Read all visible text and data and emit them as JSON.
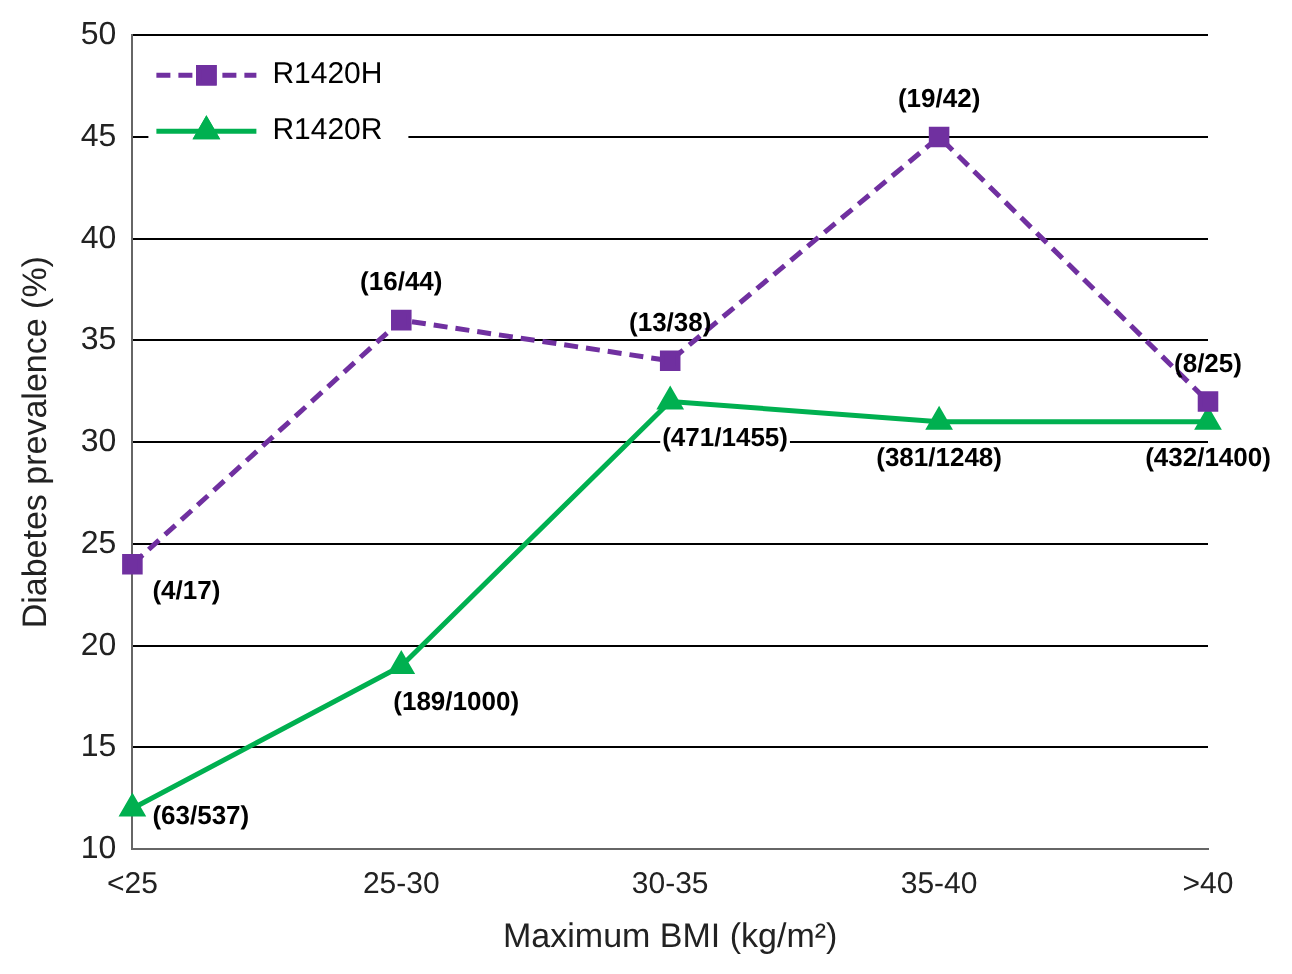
{
  "chart_data": {
    "type": "line",
    "xlabel": "Maximum BMI (kg/m²)",
    "ylabel": "Diabetes prevalence (%)",
    "categories": [
      "<25",
      "25-30",
      "30-35",
      "35-40",
      ">40"
    ],
    "series": [
      {
        "name": "R1420H",
        "color": "#7030a0",
        "marker": "square",
        "line_style": "dashed",
        "values": [
          24,
          36,
          34,
          45,
          32
        ],
        "value_labels": [
          "(4/17)",
          "(16/44)",
          "(13/38)",
          "(19/42)",
          "(8/25)"
        ]
      },
      {
        "name": "R1420R",
        "color": "#00b050",
        "marker": "triangle",
        "line_style": "solid",
        "values": [
          12,
          19,
          32,
          31,
          31
        ],
        "value_labels": [
          "(63/537)",
          "(189/1000)",
          "(471/1455)",
          "(381/1248)",
          "(432/1400)"
        ]
      }
    ],
    "ylim": [
      10,
      50
    ],
    "yticks": [
      10,
      15,
      20,
      25,
      30,
      35,
      40,
      45,
      50
    ],
    "grid": "y",
    "legend": "top left"
  }
}
